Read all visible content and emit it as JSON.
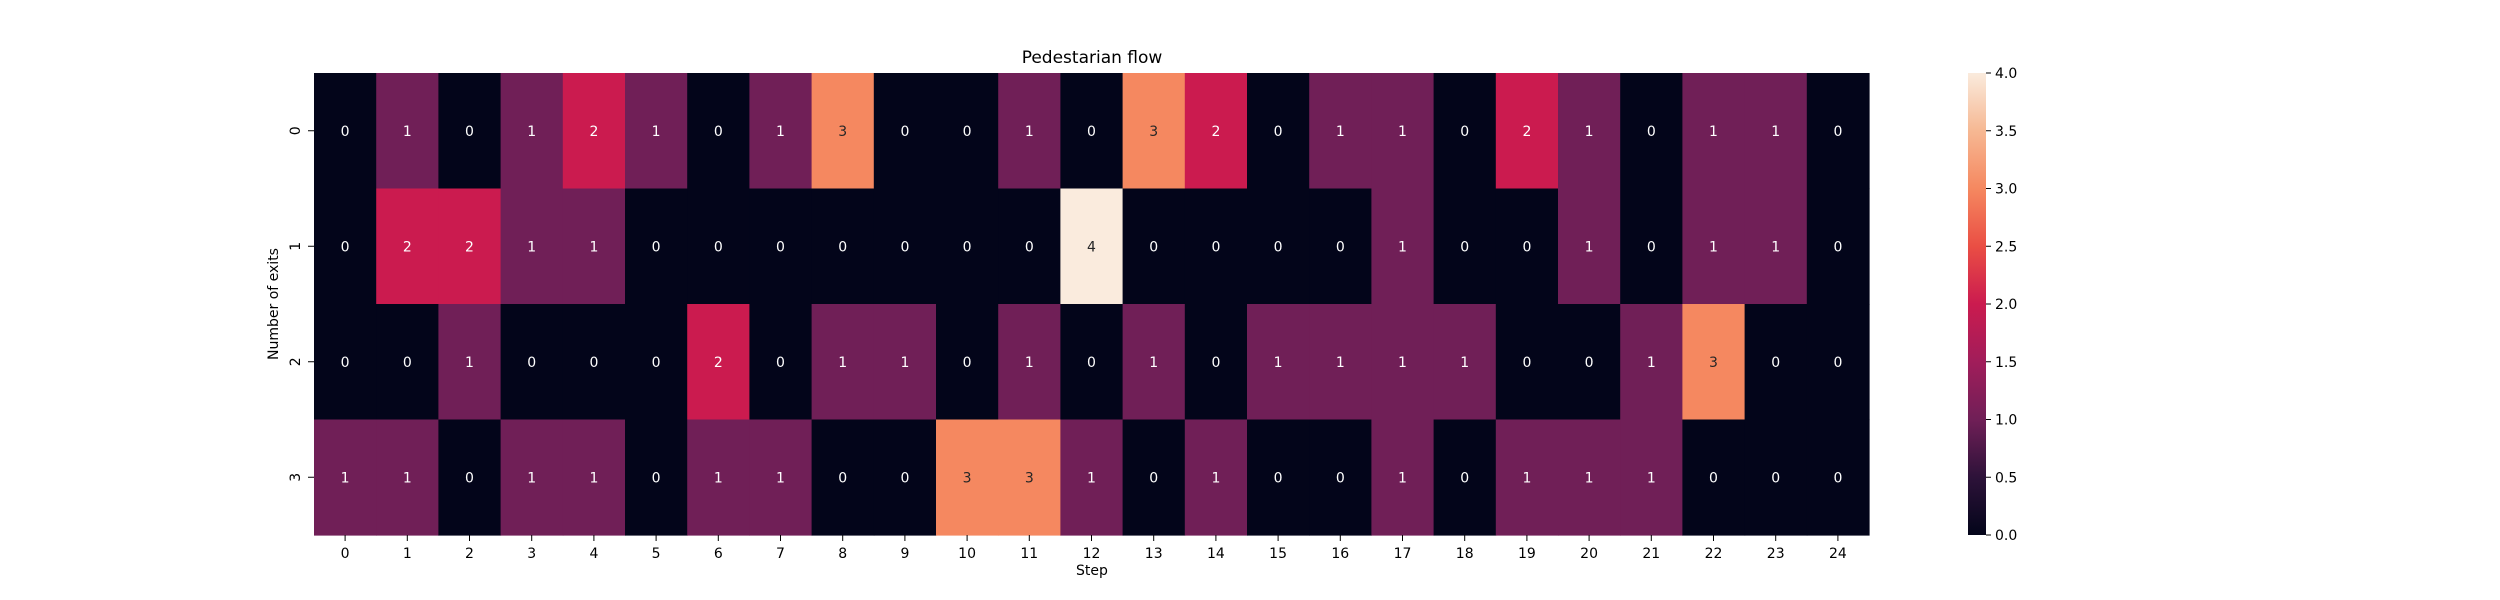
{
  "chart_data": {
    "type": "heatmap",
    "title": "Pedestarian flow",
    "xlabel": "Step",
    "ylabel": "Number of exits",
    "x_categories": [
      "0",
      "1",
      "2",
      "3",
      "4",
      "5",
      "6",
      "7",
      "8",
      "9",
      "10",
      "11",
      "12",
      "13",
      "14",
      "15",
      "16",
      "17",
      "18",
      "19",
      "20",
      "21",
      "22",
      "23",
      "24"
    ],
    "y_categories": [
      "0",
      "1",
      "2",
      "3"
    ],
    "values": [
      [
        0,
        1,
        0,
        1,
        2,
        1,
        0,
        1,
        3,
        0,
        0,
        1,
        0,
        3,
        2,
        0,
        1,
        1,
        0,
        2,
        1,
        0,
        1,
        1,
        0
      ],
      [
        0,
        2,
        2,
        1,
        1,
        0,
        0,
        0,
        0,
        0,
        0,
        0,
        4,
        0,
        0,
        0,
        0,
        1,
        0,
        0,
        1,
        0,
        1,
        1,
        0
      ],
      [
        0,
        0,
        1,
        0,
        0,
        0,
        2,
        0,
        1,
        1,
        0,
        1,
        0,
        1,
        0,
        1,
        1,
        1,
        1,
        0,
        0,
        1,
        3,
        0,
        0
      ],
      [
        1,
        1,
        0,
        1,
        1,
        0,
        1,
        1,
        0,
        0,
        3,
        3,
        1,
        0,
        1,
        0,
        0,
        1,
        0,
        1,
        1,
        1,
        0,
        0,
        0
      ]
    ],
    "colorbar": {
      "range": [
        0,
        4
      ],
      "ticks": [
        "0.0",
        "0.5",
        "1.0",
        "1.5",
        "2.0",
        "2.5",
        "3.0",
        "3.5",
        "4.0"
      ]
    },
    "colors": {
      "0": "#03051a",
      "1": "#701f57",
      "2": "#cb1b4f",
      "3": "#f58860",
      "4": "#faebdd"
    },
    "annotation_text_colors": {
      "dark_cell": "#ffffff",
      "light_cell": "#262626"
    },
    "grid": false,
    "legend": "colorbar-right"
  }
}
